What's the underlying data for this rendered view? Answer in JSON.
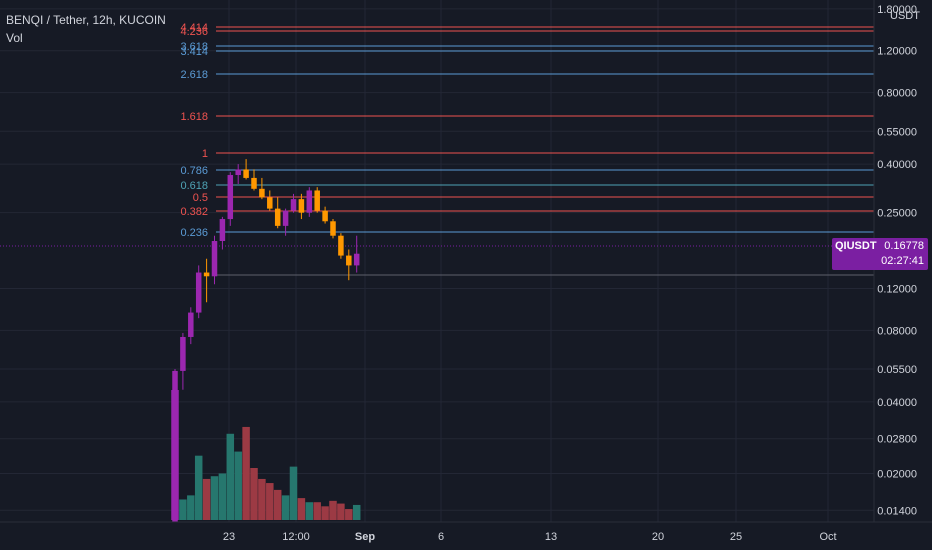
{
  "legend": {
    "title": "BENQI / Tether, 12h, KUCOIN",
    "vol": "Vol"
  },
  "price_tag": {
    "symbol": "QIUSDT",
    "price": "0.16778",
    "countdown": "02:27:41"
  },
  "currency": "USDT",
  "colors": {
    "background": "#161a25",
    "up": "#9c27b0",
    "down": "#ff9800",
    "vol_up": "#26776e",
    "vol_down": "#9c3a44",
    "fib_red": "#ef5350",
    "fib_blue": "#5b9bd5",
    "fib_teal": "#4fa3b5",
    "text": "#d1d4dc"
  },
  "chart_data": {
    "type": "candlestick",
    "title": "BENQI / Tether, 12h, KUCOIN",
    "y_scale": "log",
    "ylim": [
      0.0125,
      1.85
    ],
    "y_ticks": [
      "1.80000",
      "1.20000",
      "0.80000",
      "0.55000",
      "0.40000",
      "0.25000",
      "0.12000",
      "0.08000",
      "0.05500",
      "0.04000",
      "0.02800",
      "0.02000",
      "0.01400"
    ],
    "x_ticks": [
      "23",
      "12:00",
      "Sep",
      "6",
      "13",
      "20",
      "25",
      "Oct"
    ],
    "fib_levels": [
      {
        "label": "4.414",
        "color": "#ef5350"
      },
      {
        "label": "4.236",
        "color": "#ef5350"
      },
      {
        "label": "3.618",
        "color": "#5b9bd5"
      },
      {
        "label": "3.414",
        "color": "#5b9bd5"
      },
      {
        "label": "2.618",
        "color": "#5b9bd5"
      },
      {
        "label": "1.618",
        "color": "#ef5350"
      },
      {
        "label": "1",
        "color": "#ef5350"
      },
      {
        "label": "0.786",
        "color": "#5b9bd5"
      },
      {
        "label": "0.618",
        "color": "#4fa3b5"
      },
      {
        "label": "0.5",
        "color": "#ef5350"
      },
      {
        "label": "0.382",
        "color": "#ef5350"
      },
      {
        "label": "0.236",
        "color": "#5b9bd5"
      }
    ],
    "candles": [
      {
        "o": 0.0125,
        "h": 0.055,
        "l": 0.0125,
        "c": 0.054,
        "v": 95
      },
      {
        "o": 0.054,
        "h": 0.078,
        "l": 0.045,
        "c": 0.075,
        "v": 15
      },
      {
        "o": 0.075,
        "h": 0.1,
        "l": 0.07,
        "c": 0.095,
        "v": 18
      },
      {
        "o": 0.095,
        "h": 0.15,
        "l": 0.09,
        "c": 0.14,
        "v": 47
      },
      {
        "o": 0.14,
        "h": 0.16,
        "l": 0.105,
        "c": 0.135,
        "v": 30
      },
      {
        "o": 0.135,
        "h": 0.2,
        "l": 0.125,
        "c": 0.19,
        "v": 32
      },
      {
        "o": 0.19,
        "h": 0.24,
        "l": 0.175,
        "c": 0.235,
        "v": 34
      },
      {
        "o": 0.235,
        "h": 0.37,
        "l": 0.22,
        "c": 0.36,
        "v": 63
      },
      {
        "o": 0.36,
        "h": 0.4,
        "l": 0.33,
        "c": 0.38,
        "v": 50
      },
      {
        "o": 0.38,
        "h": 0.42,
        "l": 0.345,
        "c": 0.35,
        "v": 68
      },
      {
        "o": 0.35,
        "h": 0.38,
        "l": 0.31,
        "c": 0.315,
        "v": 38
      },
      {
        "o": 0.315,
        "h": 0.35,
        "l": 0.285,
        "c": 0.29,
        "v": 30
      },
      {
        "o": 0.29,
        "h": 0.31,
        "l": 0.255,
        "c": 0.26,
        "v": 27
      },
      {
        "o": 0.26,
        "h": 0.29,
        "l": 0.215,
        "c": 0.22,
        "v": 22
      },
      {
        "o": 0.22,
        "h": 0.26,
        "l": 0.2,
        "c": 0.255,
        "v": 18
      },
      {
        "o": 0.255,
        "h": 0.3,
        "l": 0.25,
        "c": 0.285,
        "v": 39
      },
      {
        "o": 0.285,
        "h": 0.3,
        "l": 0.235,
        "c": 0.25,
        "v": 16
      },
      {
        "o": 0.25,
        "h": 0.32,
        "l": 0.24,
        "c": 0.31,
        "v": 13
      },
      {
        "o": 0.31,
        "h": 0.32,
        "l": 0.25,
        "c": 0.255,
        "v": 13
      },
      {
        "o": 0.255,
        "h": 0.265,
        "l": 0.225,
        "c": 0.23,
        "v": 10
      },
      {
        "o": 0.23,
        "h": 0.235,
        "l": 0.195,
        "c": 0.2,
        "v": 14
      },
      {
        "o": 0.2,
        "h": 0.205,
        "l": 0.16,
        "c": 0.165,
        "v": 12
      },
      {
        "o": 0.165,
        "h": 0.175,
        "l": 0.13,
        "c": 0.15,
        "v": 8
      },
      {
        "o": 0.15,
        "h": 0.2,
        "l": 0.14,
        "c": 0.168,
        "v": 11
      }
    ]
  }
}
